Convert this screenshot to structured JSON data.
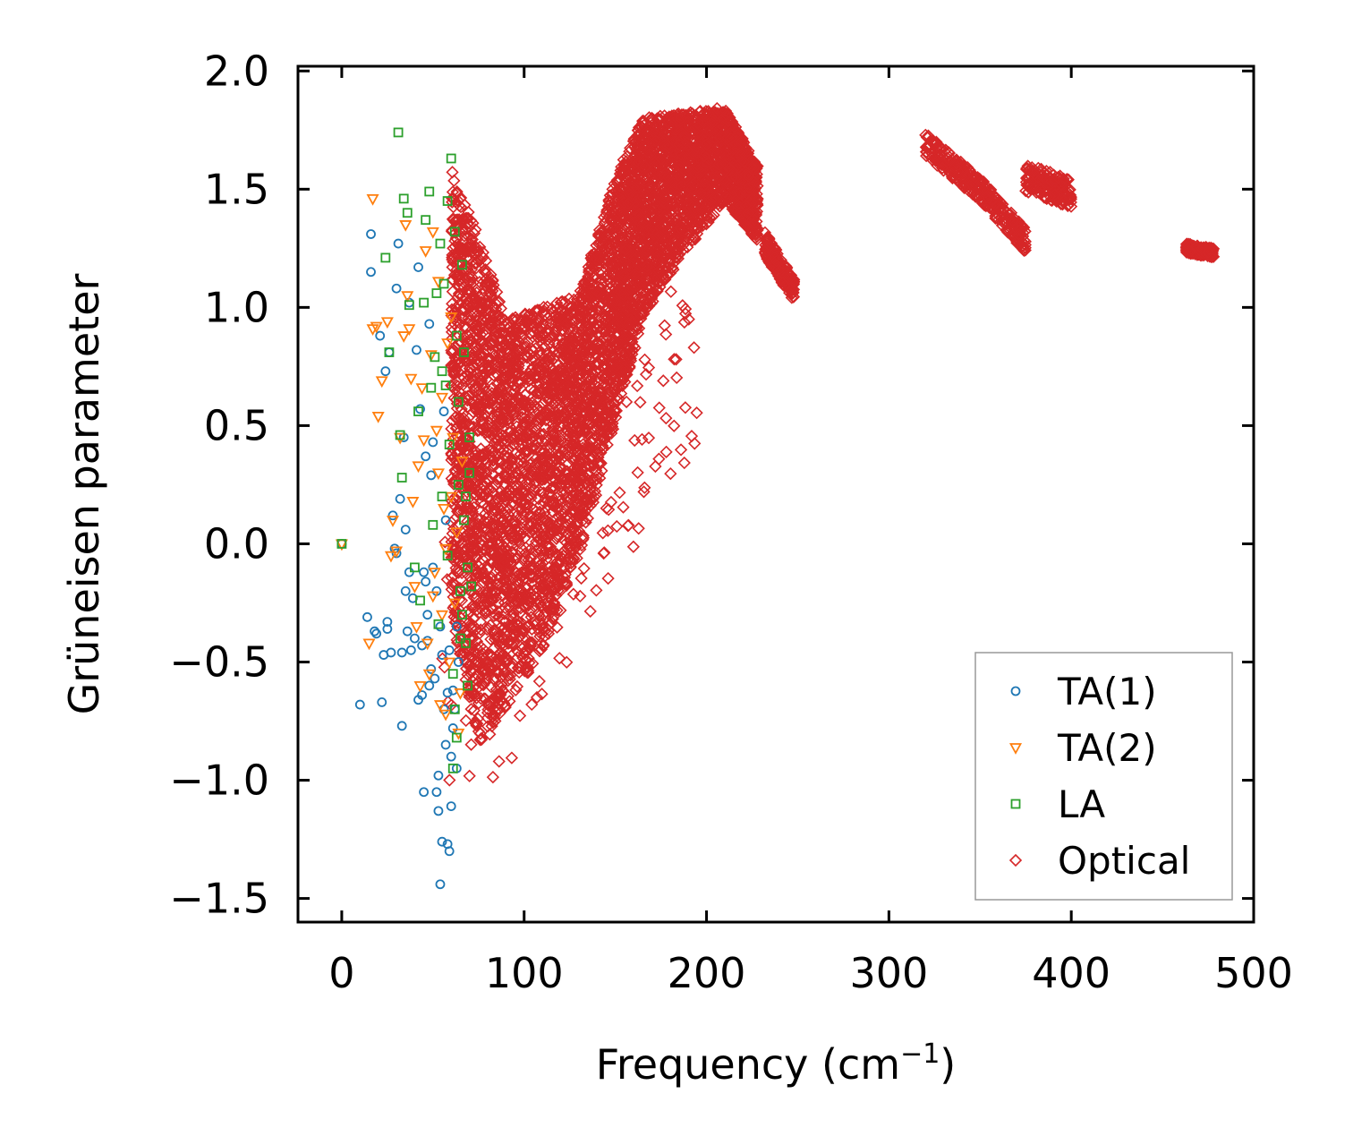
{
  "chart_data": {
    "type": "scatter",
    "title": "",
    "xlabel": "Frequency (cm",
    "xlabel_sup": "−1",
    "xlabel_suffix": ")",
    "ylabel": "Grüneisen parameter",
    "xlim": [
      -24,
      500
    ],
    "ylim": [
      -1.6,
      2.02
    ],
    "xticks": [
      0,
      100,
      200,
      300,
      400,
      500
    ],
    "xtick_labels": [
      "0",
      "100",
      "200",
      "300",
      "400",
      "500"
    ],
    "yticks": [
      -1.5,
      -1.0,
      -0.5,
      0.0,
      0.5,
      1.0,
      1.5,
      2.0
    ],
    "ytick_labels": [
      "−1.5",
      "−1.0",
      "−0.5",
      "0.0",
      "0.5",
      "1.0",
      "1.5",
      "2.0"
    ],
    "legend_position": "lower-right",
    "series": [
      {
        "name": "TA(1)",
        "marker": "circle",
        "color": "#1f77b4",
        "points": [
          [
            0,
            0
          ],
          [
            10,
            -0.68
          ],
          [
            14,
            -0.31
          ],
          [
            16,
            1.31
          ],
          [
            16,
            1.15
          ],
          [
            18,
            -0.37
          ],
          [
            19,
            -0.38
          ],
          [
            21,
            0.88
          ],
          [
            22,
            -0.67
          ],
          [
            23,
            -0.47
          ],
          [
            24,
            0.73
          ],
          [
            25,
            -0.36
          ],
          [
            25,
            -0.33
          ],
          [
            26,
            0.81
          ],
          [
            27,
            -0.46
          ],
          [
            28,
            0.12
          ],
          [
            29,
            -0.02
          ],
          [
            30,
            1.08
          ],
          [
            30,
            -0.04
          ],
          [
            31,
            1.27
          ],
          [
            32,
            0.19
          ],
          [
            33,
            -0.46
          ],
          [
            33,
            -0.77
          ],
          [
            34,
            0.45
          ],
          [
            35,
            0.06
          ],
          [
            35,
            -0.2
          ],
          [
            36,
            -0.37
          ],
          [
            37,
            1.02
          ],
          [
            37,
            -0.12
          ],
          [
            38,
            -0.45
          ],
          [
            39,
            -0.23
          ],
          [
            40,
            -0.4
          ],
          [
            41,
            0.82
          ],
          [
            42,
            1.17
          ],
          [
            43,
            0.57
          ],
          [
            44,
            -0.64
          ],
          [
            45,
            -0.12
          ],
          [
            45,
            -1.05
          ],
          [
            46,
            0.37
          ],
          [
            47,
            -0.41
          ],
          [
            48,
            0.93
          ],
          [
            48,
            -0.6
          ],
          [
            49,
            0.29
          ],
          [
            50,
            -0.1
          ],
          [
            50,
            0.43
          ],
          [
            51,
            -0.57
          ],
          [
            52,
            -1.05
          ],
          [
            53,
            -0.98
          ],
          [
            53,
            -1.13
          ],
          [
            54,
            -1.44
          ],
          [
            55,
            -1.26
          ],
          [
            55,
            -0.47
          ],
          [
            56,
            0.56
          ],
          [
            57,
            -0.85
          ],
          [
            58,
            -1.27
          ],
          [
            58,
            -0.63
          ],
          [
            59,
            -1.3
          ],
          [
            60,
            -1.11
          ],
          [
            60,
            -0.9
          ],
          [
            61,
            -0.62
          ],
          [
            62,
            -0.7
          ],
          [
            63,
            -0.35
          ],
          [
            64,
            -0.5
          ],
          [
            56,
            -0.7
          ],
          [
            54,
            -0.35
          ],
          [
            57,
            0.1
          ],
          [
            52,
            -0.2
          ],
          [
            59,
            -0.45
          ],
          [
            61,
            -0.78
          ],
          [
            63,
            -0.95
          ],
          [
            49,
            -0.53
          ],
          [
            47,
            -0.3
          ],
          [
            44,
            -0.43
          ],
          [
            42,
            -0.66
          ],
          [
            46,
            -0.16
          ]
        ]
      },
      {
        "name": "TA(2)",
        "marker": "triangle",
        "color": "#ff7f0e",
        "points": [
          [
            0,
            0
          ],
          [
            15,
            -0.42
          ],
          [
            17,
            1.46
          ],
          [
            17,
            0.91
          ],
          [
            19,
            0.92
          ],
          [
            20,
            0.54
          ],
          [
            22,
            0.69
          ],
          [
            25,
            0.94
          ],
          [
            27,
            -0.05
          ],
          [
            28,
            0.1
          ],
          [
            30,
            -0.03
          ],
          [
            32,
            0.45
          ],
          [
            34,
            0.88
          ],
          [
            35,
            1.35
          ],
          [
            36,
            1.05
          ],
          [
            37,
            0.91
          ],
          [
            38,
            0.7
          ],
          [
            39,
            0.18
          ],
          [
            40,
            -0.18
          ],
          [
            41,
            -0.35
          ],
          [
            42,
            0.33
          ],
          [
            43,
            -0.6
          ],
          [
            44,
            0.66
          ],
          [
            45,
            0.44
          ],
          [
            46,
            1.24
          ],
          [
            47,
            -0.42
          ],
          [
            48,
            -0.55
          ],
          [
            49,
            0.8
          ],
          [
            50,
            1.32
          ],
          [
            51,
            -0.12
          ],
          [
            52,
            0.48
          ],
          [
            53,
            1.11
          ],
          [
            54,
            -0.68
          ],
          [
            55,
            -0.3
          ],
          [
            56,
            0.15
          ],
          [
            57,
            -0.02
          ],
          [
            58,
            0.85
          ],
          [
            59,
            -0.5
          ],
          [
            60,
            0.96
          ],
          [
            61,
            0.45
          ],
          [
            62,
            -0.25
          ],
          [
            63,
            0.05
          ],
          [
            64,
            -0.8
          ],
          [
            65,
            -0.63
          ],
          [
            66,
            0.35
          ],
          [
            50,
            -0.22
          ],
          [
            53,
            0.3
          ],
          [
            57,
            -0.72
          ],
          [
            60,
            0.2
          ],
          [
            55,
            0.62
          ]
        ]
      },
      {
        "name": "LA",
        "marker": "square",
        "color": "#2ca02c",
        "points": [
          [
            0,
            0
          ],
          [
            24,
            1.21
          ],
          [
            26,
            0.81
          ],
          [
            31,
            1.74
          ],
          [
            32,
            0.46
          ],
          [
            33,
            0.28
          ],
          [
            34,
            1.46
          ],
          [
            36,
            1.4
          ],
          [
            37,
            1.01
          ],
          [
            40,
            -0.1
          ],
          [
            42,
            0.56
          ],
          [
            43,
            -0.24
          ],
          [
            45,
            1.02
          ],
          [
            46,
            1.37
          ],
          [
            48,
            1.49
          ],
          [
            49,
            0.66
          ],
          [
            50,
            0.08
          ],
          [
            51,
            0.79
          ],
          [
            52,
            1.06
          ],
          [
            53,
            -0.34
          ],
          [
            54,
            1.27
          ],
          [
            55,
            0.73
          ],
          [
            56,
            1.1
          ],
          [
            57,
            0.67
          ],
          [
            58,
            1.45
          ],
          [
            59,
            0.42
          ],
          [
            60,
            1.63
          ],
          [
            61,
            -0.55
          ],
          [
            62,
            1.32
          ],
          [
            63,
            0.88
          ],
          [
            64,
            0.6
          ],
          [
            65,
            -0.2
          ],
          [
            66,
            1.18
          ],
          [
            67,
            0.81
          ],
          [
            68,
            -0.42
          ],
          [
            69,
            -0.6
          ],
          [
            70,
            0.45
          ],
          [
            71,
            -0.18
          ],
          [
            55,
            0.2
          ],
          [
            58,
            -0.05
          ],
          [
            62,
            -0.7
          ],
          [
            64,
            0.25
          ],
          [
            66,
            -0.3
          ],
          [
            67,
            0.1
          ],
          [
            63,
            -0.82
          ],
          [
            61,
            -0.95
          ],
          [
            65,
            -0.4
          ],
          [
            68,
            0.2
          ],
          [
            69,
            -0.1
          ],
          [
            70,
            0.3
          ]
        ]
      },
      {
        "name": "Optical",
        "marker": "diamond",
        "color": "#d62728",
        "points": []
      }
    ],
    "optical_envelope": [
      {
        "x": [
          60,
          75
        ],
        "y_low": [
          -0.3,
          -0.85
        ],
        "y_high": [
          1.6,
          1.3
        ]
      },
      {
        "x": [
          75,
          90
        ],
        "y_low": [
          -0.85,
          -0.7
        ],
        "y_high": [
          1.3,
          0.95
        ]
      },
      {
        "x": [
          90,
          110
        ],
        "y_low": [
          -0.7,
          -0.45
        ],
        "y_high": [
          0.95,
          1.0
        ]
      },
      {
        "x": [
          110,
          130
        ],
        "y_low": [
          -0.45,
          -0.05
        ],
        "y_high": [
          1.0,
          1.05
        ]
      },
      {
        "x": [
          130,
          150
        ],
        "y_low": [
          -0.05,
          0.5
        ],
        "y_high": [
          1.05,
          1.55
        ]
      },
      {
        "x": [
          150,
          165
        ],
        "y_low": [
          0.5,
          0.95
        ],
        "y_high": [
          1.55,
          1.8
        ]
      },
      {
        "x": [
          165,
          185
        ],
        "y_low": [
          0.95,
          1.2
        ],
        "y_high": [
          1.8,
          1.82
        ]
      },
      {
        "x": [
          185,
          210
        ],
        "y_low": [
          1.2,
          1.45
        ],
        "y_high": [
          1.82,
          1.85
        ]
      },
      {
        "x": [
          210,
          228
        ],
        "y_low": [
          1.45,
          1.28
        ],
        "y_high": [
          1.85,
          1.6
        ]
      }
    ],
    "optical_clusters": [
      {
        "x_range": [
          232,
          248
        ],
        "y_center_start": 1.27,
        "y_center_end": 1.07,
        "spread": 0.05
      },
      {
        "x_range": [
          320,
          350
        ],
        "y_center_start": 1.69,
        "y_center_end": 1.5,
        "spread": 0.05
      },
      {
        "x_range": [
          350,
          375
        ],
        "y_center_start": 1.5,
        "y_center_end": 1.28,
        "spread": 0.05
      },
      {
        "x_range": [
          375,
          400
        ],
        "y_center_start": 1.55,
        "y_center_end": 1.48,
        "spread": 0.06
      },
      {
        "x_range": [
          463,
          478
        ],
        "y_center_start": 1.25,
        "y_center_end": 1.23,
        "spread": 0.02
      }
    ]
  }
}
